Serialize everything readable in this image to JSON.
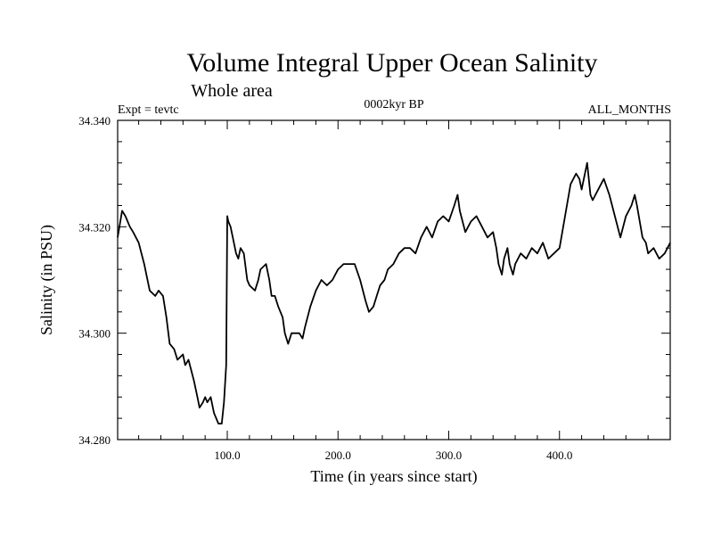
{
  "chart_data": {
    "type": "line",
    "title": "Volume Integral Upper Ocean Salinity",
    "subtitle": "Whole area",
    "header_left": "Expt = tevtc",
    "header_center": "0002kyr BP",
    "header_right": "ALL_MONTHS",
    "xlabel": "Time (in years since start)",
    "ylabel": "Salinity (in PSU)",
    "xlim": [
      1,
      500
    ],
    "ylim": [
      34.28,
      34.34
    ],
    "xticks": [
      100,
      200,
      300,
      400
    ],
    "xtick_labels": [
      "100.0",
      "200.0",
      "300.0",
      "400.0"
    ],
    "yticks": [
      34.28,
      34.3,
      34.32,
      34.34
    ],
    "ytick_labels": [
      "34.280",
      "34.300",
      "34.320",
      "34.340"
    ],
    "grid": false,
    "series": [
      {
        "x": [
          1,
          5,
          8,
          12,
          15,
          20,
          25,
          30,
          35,
          38,
          42,
          45,
          48,
          52,
          55,
          60,
          62,
          65,
          70,
          73,
          75,
          78,
          80,
          82,
          85,
          88,
          90,
          92,
          95,
          97,
          99,
          100,
          101,
          103,
          105,
          108,
          110,
          112,
          115,
          118,
          120,
          125,
          128,
          130,
          135,
          138,
          140,
          143,
          146,
          150,
          152,
          155,
          158,
          160,
          165,
          168,
          170,
          175,
          180,
          185,
          190,
          195,
          200,
          205,
          210,
          215,
          220,
          225,
          228,
          232,
          235,
          238,
          242,
          245,
          250,
          255,
          260,
          265,
          270,
          275,
          280,
          285,
          290,
          295,
          300,
          305,
          308,
          310,
          315,
          320,
          325,
          330,
          335,
          340,
          343,
          345,
          348,
          350,
          353,
          355,
          358,
          360,
          365,
          370,
          375,
          380,
          385,
          390,
          395,
          400,
          405,
          410,
          415,
          418,
          420,
          423,
          425,
          428,
          430,
          435,
          440,
          445,
          450,
          455,
          460,
          465,
          468,
          470,
          475,
          478,
          480,
          485,
          490,
          495,
          500
        ],
        "y": [
          34.318,
          34.323,
          34.322,
          34.32,
          34.319,
          34.317,
          34.313,
          34.308,
          34.307,
          34.308,
          34.307,
          34.303,
          34.298,
          34.297,
          34.295,
          34.296,
          34.294,
          34.295,
          34.291,
          34.288,
          34.286,
          34.287,
          34.288,
          34.287,
          34.288,
          34.285,
          34.284,
          34.283,
          34.283,
          34.287,
          34.294,
          34.322,
          34.321,
          34.32,
          34.318,
          34.315,
          34.314,
          34.316,
          34.315,
          34.31,
          34.309,
          34.308,
          34.31,
          34.312,
          34.313,
          34.31,
          34.307,
          34.307,
          34.305,
          34.303,
          34.3,
          34.298,
          34.3,
          34.3,
          34.3,
          34.299,
          34.301,
          34.305,
          34.308,
          34.31,
          34.309,
          34.31,
          34.312,
          34.313,
          34.313,
          34.313,
          34.31,
          34.306,
          34.304,
          34.305,
          34.307,
          34.309,
          34.31,
          34.312,
          34.313,
          34.315,
          34.316,
          34.316,
          34.315,
          34.318,
          34.32,
          34.318,
          34.321,
          34.322,
          34.321,
          34.324,
          34.326,
          34.323,
          34.319,
          34.321,
          34.322,
          34.32,
          34.318,
          34.319,
          34.316,
          34.313,
          34.311,
          34.314,
          34.316,
          34.313,
          34.311,
          34.313,
          34.315,
          34.314,
          34.316,
          34.315,
          34.317,
          34.314,
          34.315,
          34.316,
          34.322,
          34.328,
          34.33,
          34.329,
          34.327,
          34.33,
          34.332,
          34.326,
          34.325,
          34.327,
          34.329,
          34.326,
          34.322,
          34.318,
          34.322,
          34.324,
          34.326,
          34.324,
          34.318,
          34.317,
          34.315,
          34.316,
          34.314,
          34.315,
          34.317
        ]
      }
    ]
  }
}
